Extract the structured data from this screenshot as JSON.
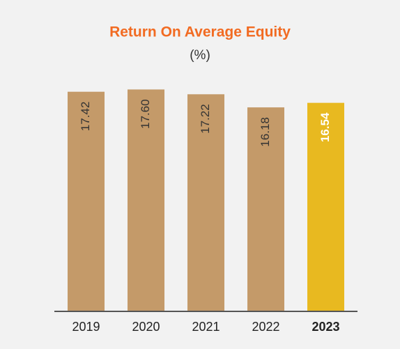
{
  "chart_data": {
    "type": "bar",
    "title": "Return On Average Equity",
    "subtitle": "(%)",
    "categories": [
      "2019",
      "2020",
      "2021",
      "2022",
      "2023"
    ],
    "values": [
      17.42,
      17.6,
      17.22,
      16.18,
      16.54
    ],
    "value_labels": [
      "17.42",
      "17.60",
      "17.22",
      "16.18",
      "16.54"
    ],
    "color": "#c49a69",
    "highlight": {
      "index": 4,
      "color": "#e8b920"
    },
    "ylim": [
      0,
      20
    ]
  }
}
